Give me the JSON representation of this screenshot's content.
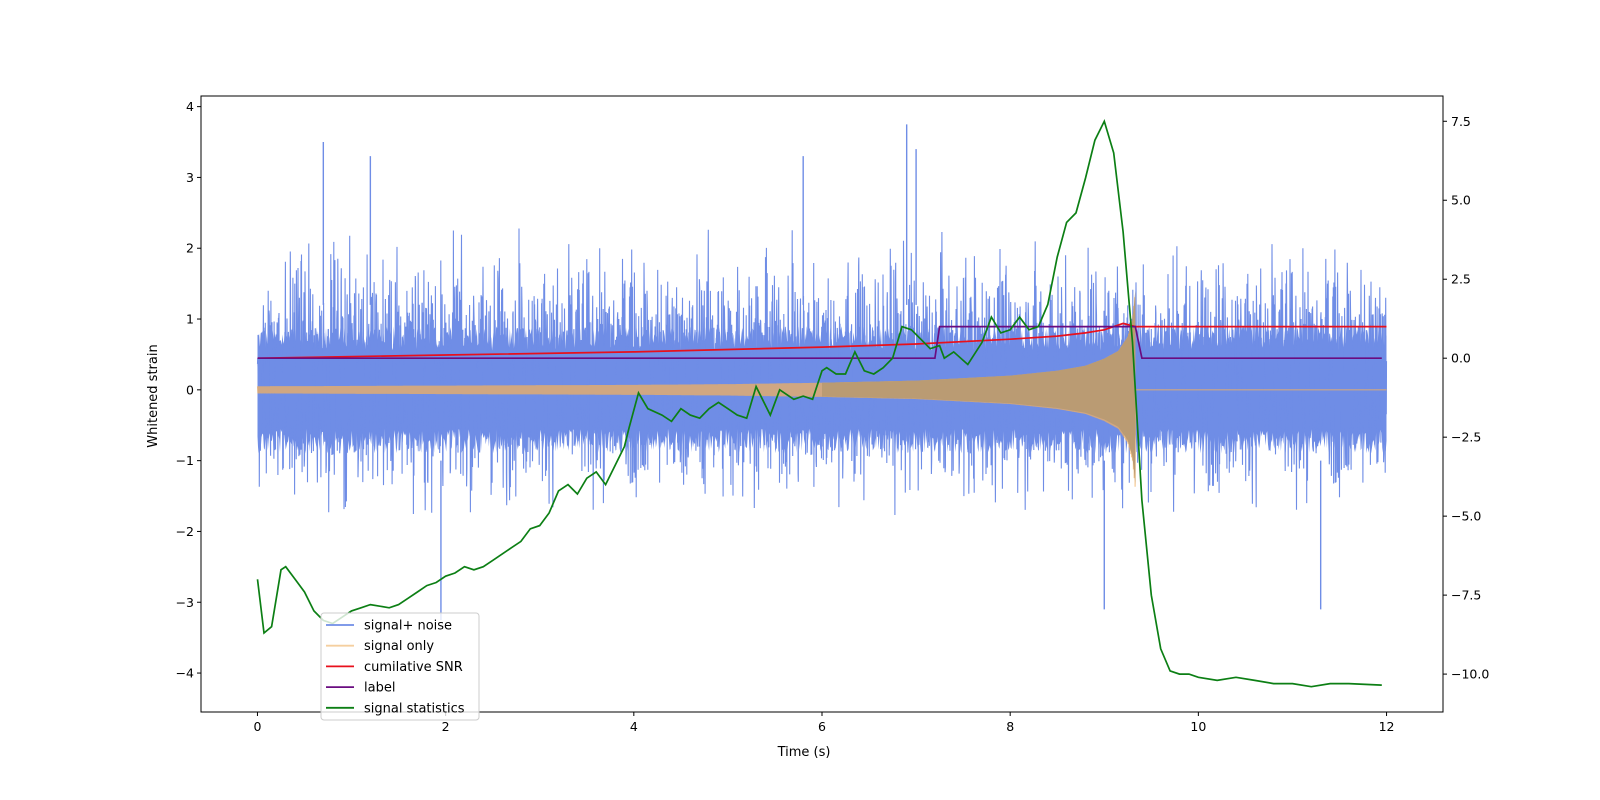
{
  "colors": {
    "signal_noise": "#6f8de6",
    "signal_only": "#f0b060",
    "cumulative_snr": "#e8101c",
    "label": "#6a0c80",
    "signal_statistics": "#0c7f14"
  },
  "chart_data": {
    "type": "line",
    "xlabel": "Time (s)",
    "ylabel": "Whitened strain",
    "xlim": [
      -0.6,
      12.6
    ],
    "ylim_left": [
      -4.55,
      4.15
    ],
    "ylim_right": [
      -11.2,
      8.3
    ],
    "x_ticks": [
      0,
      2,
      4,
      6,
      8,
      10,
      12
    ],
    "x_tick_labels": [
      "0",
      "2",
      "4",
      "6",
      "8",
      "10",
      "12"
    ],
    "y_ticks_left": [
      -4,
      -3,
      -2,
      -1,
      0,
      1,
      2,
      3,
      4
    ],
    "y_tick_labels_left": [
      "−4",
      "−3",
      "−2",
      "−1",
      "0",
      "1",
      "2",
      "3",
      "4"
    ],
    "y_ticks_right": [
      -10,
      -7.5,
      -5,
      -2.5,
      0,
      2.5,
      5,
      7.5
    ],
    "y_tick_labels_right": [
      "−10.0",
      "−7.5",
      "−5.0",
      "−2.5",
      "0.0",
      "2.5",
      "5.0",
      "7.5"
    ],
    "grid": false,
    "legend_position": "lower-left",
    "legend": [
      "signal+ noise",
      "signal only",
      "cumilative SNR",
      "label",
      "signal statistics"
    ],
    "series": [
      {
        "name": "signal+ noise",
        "axis": "left",
        "x_range": [
          0,
          12
        ],
        "typical_range": [
          -1.8,
          2.3
        ],
        "extremes": [
          -3.3,
          3.75
        ],
        "notable_peaks": [
          [
            0.7,
            3.5
          ],
          [
            6.9,
            3.75
          ],
          [
            7.0,
            3.4
          ],
          [
            5.8,
            3.3
          ],
          [
            1.2,
            3.3
          ],
          [
            1.95,
            -3.25
          ],
          [
            11.3,
            -3.1
          ],
          [
            9.0,
            -3.1
          ]
        ]
      },
      {
        "name": "signal only",
        "axis": "left",
        "x_range": [
          0,
          12
        ],
        "envelope_x": [
          0,
          1,
          2,
          3,
          4,
          5,
          6,
          7,
          8,
          8.5,
          8.8,
          9.0,
          9.15,
          9.25,
          9.3,
          9.33
        ],
        "envelope_amplitude": [
          0.05,
          0.055,
          0.06,
          0.065,
          0.07,
          0.08,
          0.1,
          0.13,
          0.2,
          0.27,
          0.34,
          0.44,
          0.55,
          0.75,
          1.0,
          1.4
        ],
        "after_merger": 0.0
      },
      {
        "name": "cumilative SNR",
        "axis": "right",
        "x": [
          0,
          2,
          4,
          6,
          7,
          8,
          8.5,
          8.8,
          9.0,
          9.2,
          9.33,
          12
        ],
        "y": [
          0.0,
          0.1,
          0.2,
          0.35,
          0.45,
          0.6,
          0.7,
          0.8,
          0.9,
          1.1,
          1.0,
          1.0
        ]
      },
      {
        "name": "label",
        "axis": "right",
        "x": [
          0,
          7.2,
          7.25,
          9.33,
          9.4,
          11.95
        ],
        "y": [
          0,
          0,
          1,
          1,
          0,
          0
        ]
      },
      {
        "name": "signal statistics",
        "axis": "right",
        "x": [
          0,
          0.07,
          0.15,
          0.25,
          0.3,
          0.4,
          0.5,
          0.6,
          0.7,
          0.8,
          0.9,
          1.0,
          1.1,
          1.2,
          1.3,
          1.4,
          1.5,
          1.6,
          1.7,
          1.8,
          1.9,
          2.0,
          2.1,
          2.2,
          2.3,
          2.4,
          2.5,
          2.6,
          2.7,
          2.8,
          2.9,
          3.0,
          3.1,
          3.2,
          3.3,
          3.4,
          3.5,
          3.6,
          3.7,
          3.8,
          3.9,
          3.95,
          4.05,
          4.15,
          4.3,
          4.4,
          4.5,
          4.6,
          4.7,
          4.8,
          4.9,
          5.0,
          5.1,
          5.2,
          5.3,
          5.45,
          5.55,
          5.7,
          5.8,
          5.9,
          6.0,
          6.05,
          6.15,
          6.25,
          6.35,
          6.45,
          6.55,
          6.65,
          6.75,
          6.85,
          6.95,
          7.05,
          7.15,
          7.25,
          7.3,
          7.4,
          7.55,
          7.7,
          7.8,
          7.9,
          8.0,
          8.1,
          8.2,
          8.3,
          8.4,
          8.5,
          8.6,
          8.7,
          8.8,
          8.9,
          9.0,
          9.1,
          9.2,
          9.3,
          9.4,
          9.5,
          9.6,
          9.7,
          9.8,
          9.9,
          10.0,
          10.2,
          10.4,
          10.6,
          10.8,
          11.0,
          11.2,
          11.4,
          11.6,
          11.95
        ],
        "y": [
          -7.0,
          -8.7,
          -8.5,
          -6.7,
          -6.6,
          -7.0,
          -7.4,
          -8.0,
          -8.3,
          -8.4,
          -8.2,
          -8.0,
          -7.9,
          -7.8,
          -7.85,
          -7.9,
          -7.8,
          -7.6,
          -7.4,
          -7.2,
          -7.1,
          -6.9,
          -6.8,
          -6.6,
          -6.7,
          -6.6,
          -6.4,
          -6.2,
          -6.0,
          -5.8,
          -5.4,
          -5.3,
          -4.9,
          -4.2,
          -4.0,
          -4.3,
          -3.8,
          -3.6,
          -4.0,
          -3.4,
          -2.8,
          -2.2,
          -1.1,
          -1.6,
          -1.8,
          -2.0,
          -1.6,
          -1.8,
          -1.9,
          -1.6,
          -1.4,
          -1.6,
          -1.8,
          -1.9,
          -0.9,
          -1.8,
          -1.0,
          -1.3,
          -1.2,
          -1.3,
          -0.4,
          -0.3,
          -0.5,
          -0.5,
          0.2,
          -0.4,
          -0.5,
          -0.3,
          0.0,
          1.0,
          0.9,
          0.6,
          0.3,
          0.4,
          0.0,
          0.2,
          -0.2,
          0.5,
          1.3,
          0.8,
          0.9,
          1.3,
          0.9,
          1.0,
          1.7,
          3.2,
          4.3,
          4.6,
          5.7,
          6.9,
          7.5,
          6.5,
          4.0,
          0.5,
          -4.5,
          -7.5,
          -9.2,
          -9.9,
          -10.0,
          -10.0,
          -10.1,
          -10.2,
          -10.1,
          -10.2,
          -10.3,
          -10.3,
          -10.4,
          -10.3,
          -10.3,
          -10.35
        ]
      }
    ]
  }
}
